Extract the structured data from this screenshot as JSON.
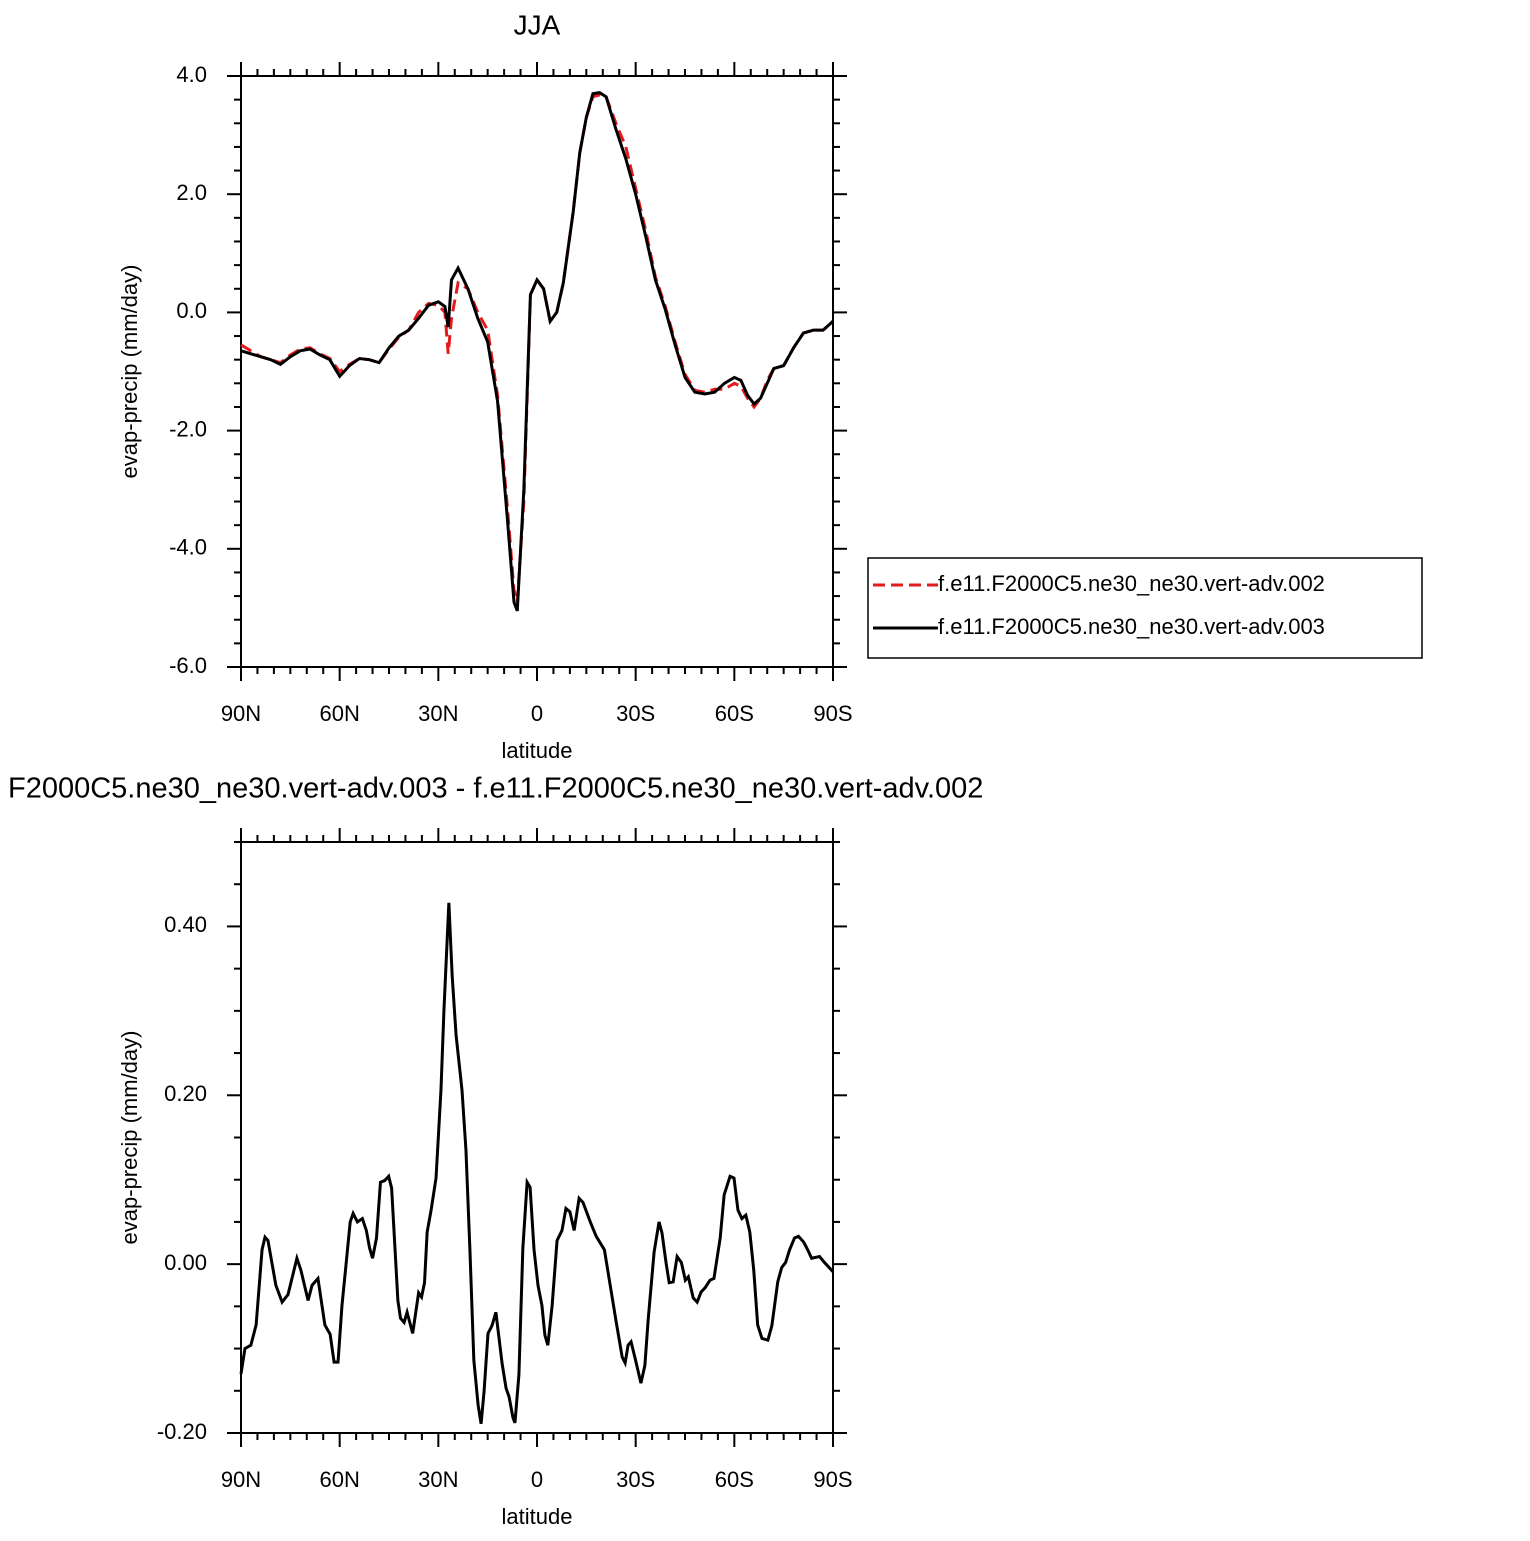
{
  "chart_data": [
    {
      "type": "line",
      "title": "JJA",
      "xlabel": "latitude",
      "ylabel": "evap-precip (mm/day)",
      "xlim": [
        90,
        -90
      ],
      "xticks": [
        {
          "value": 90,
          "label": "90N"
        },
        {
          "value": 60,
          "label": "60N"
        },
        {
          "value": 30,
          "label": "30N"
        },
        0,
        {
          "value": -30,
          "label": "30S"
        },
        {
          "value": -60,
          "label": "60S"
        },
        {
          "value": -90,
          "label": "90S"
        }
      ],
      "ylim": [
        -6,
        4
      ],
      "yticks": [
        {
          "value": -6,
          "label": "-6.0"
        },
        {
          "value": -4,
          "label": "-4.0"
        },
        {
          "value": -2,
          "label": "-2.0"
        },
        {
          "value": 0,
          "label": "0.0"
        },
        {
          "value": 2,
          "label": "2.0"
        },
        {
          "value": 4,
          "label": "4.0"
        }
      ],
      "legend": "right",
      "x": [
        90,
        87,
        84,
        81,
        78,
        75,
        72,
        69,
        66,
        63,
        60,
        57,
        54,
        51,
        48,
        45,
        42,
        39,
        36,
        33,
        30,
        28,
        27,
        26,
        24,
        21,
        18,
        15,
        12,
        9,
        7,
        6,
        4,
        2,
        0,
        -2,
        -4,
        -6,
        -8,
        -11,
        -13,
        -15,
        -17,
        -19,
        -21,
        -24,
        -27,
        -30,
        -33,
        -36,
        -39,
        -42,
        -45,
        -48,
        -51,
        -54,
        -57,
        -60,
        -62,
        -64,
        -66,
        -68,
        -70,
        -72,
        -75,
        -78,
        -81,
        -84,
        -87,
        -90
      ],
      "series": [
        {
          "name": "f.e11.F2000C5.ne30_ne30.vert-adv.002",
          "color": "#e41a1c",
          "linestyle": "dashed",
          "values": [
            -0.55,
            -0.65,
            -0.75,
            -0.8,
            -0.85,
            -0.72,
            -0.62,
            -0.6,
            -0.7,
            -0.78,
            -1.0,
            -0.88,
            -0.78,
            -0.8,
            -0.85,
            -0.62,
            -0.42,
            -0.3,
            0.0,
            0.15,
            0.12,
            0.0,
            -0.7,
            -0.1,
            0.5,
            0.4,
            0.0,
            -0.3,
            -1.4,
            -3.3,
            -4.7,
            -4.9,
            -3.2,
            0.3,
            0.55,
            0.4,
            -0.15,
            0.0,
            0.5,
            1.7,
            2.7,
            3.3,
            3.65,
            3.68,
            3.65,
            3.2,
            2.8,
            2.1,
            1.4,
            0.6,
            0.1,
            -0.5,
            -1.05,
            -1.32,
            -1.35,
            -1.3,
            -1.3,
            -1.2,
            -1.25,
            -1.45,
            -1.6,
            -1.45,
            -1.15,
            -0.95,
            -0.9,
            -0.6,
            -0.35,
            -0.3,
            -0.3,
            -0.15
          ]
        },
        {
          "name": "f.e11.F2000C5.ne30_ne30.vert-adv.003",
          "color": "#000000",
          "linestyle": "solid",
          "values": [
            -0.65,
            -0.7,
            -0.75,
            -0.8,
            -0.88,
            -0.75,
            -0.65,
            -0.62,
            -0.72,
            -0.8,
            -1.08,
            -0.9,
            -0.78,
            -0.8,
            -0.85,
            -0.6,
            -0.4,
            -0.3,
            -0.1,
            0.12,
            0.18,
            0.1,
            -0.25,
            0.55,
            0.75,
            0.4,
            -0.1,
            -0.5,
            -1.5,
            -3.5,
            -4.9,
            -5.05,
            -3.0,
            0.3,
            0.55,
            0.4,
            -0.15,
            0.0,
            0.5,
            1.7,
            2.7,
            3.3,
            3.7,
            3.72,
            3.65,
            3.1,
            2.6,
            2.0,
            1.3,
            0.55,
            0.05,
            -0.55,
            -1.1,
            -1.35,
            -1.38,
            -1.35,
            -1.2,
            -1.1,
            -1.15,
            -1.4,
            -1.55,
            -1.45,
            -1.2,
            -0.95,
            -0.9,
            -0.6,
            -0.35,
            -0.3,
            -0.3,
            -0.15
          ]
        }
      ]
    },
    {
      "type": "line",
      "title": "F2000C5.ne30_ne30.vert-adv.003 - f.e11.F2000C5.ne30_ne30.vert-adv.002",
      "xlabel": "latitude",
      "ylabel": "evap-precip (mm/day)",
      "xlim": [
        90,
        -90
      ],
      "xticks": [
        {
          "value": 90,
          "label": "90N"
        },
        {
          "value": 60,
          "label": "60N"
        },
        {
          "value": 30,
          "label": "30N"
        },
        0,
        {
          "value": -30,
          "label": "30S"
        },
        {
          "value": -60,
          "label": "60S"
        },
        {
          "value": -90,
          "label": "90S"
        }
      ],
      "ylim": [
        -0.2,
        0.5
      ],
      "yticks": [
        {
          "value": -0.2,
          "label": "-0.20"
        },
        {
          "value": 0,
          "label": "0.00"
        },
        {
          "value": 0.2,
          "label": "0.20"
        },
        {
          "value": 0.4,
          "label": "0.40"
        }
      ],
      "x": [
        90,
        88.8,
        87,
        85.4,
        83.6,
        82.7,
        81.8,
        79.4,
        77.5,
        75.7,
        73,
        71.8,
        69.6,
        68.4,
        66.6,
        64.5,
        62.9,
        61.7,
        60.5,
        59.3,
        58,
        56.8,
        55.9,
        54.6,
        53.1,
        51.9,
        50.9,
        50,
        48.8,
        47.6,
        46.3,
        45.1,
        44.2,
        42.3,
        41.5,
        40.4,
        39.5,
        37.8,
        36,
        35.1,
        34.2,
        33.4,
        32.2,
        30.7,
        29.2,
        28.3,
        26.8,
        25.8,
        24.6,
        22.8,
        21.6,
        20.4,
        19.2,
        17.9,
        17,
        16.1,
        14.9,
        13.7,
        12.5,
        10.6,
        9.4,
        8.5,
        7.3,
        6.7,
        5.5,
        4.3,
        3,
        2.1,
        0.9,
        -0.3,
        -1.5,
        -2.4,
        -3.3,
        -4.6,
        -6.1,
        -7.6,
        -8.8,
        -10,
        -11.3,
        -12.8,
        -14,
        -16.2,
        -18,
        -20.5,
        -22,
        -24.1,
        -25.9,
        -26.8,
        -27.7,
        -28.6,
        -29.8,
        -31.6,
        -32.8,
        -33.8,
        -35.6,
        -37.1,
        -38,
        -39.3,
        -40.2,
        -41.4,
        -42.6,
        -43.9,
        -45.1,
        -46,
        -47.5,
        -48.7,
        -49.9,
        -51.1,
        -52.6,
        -53.8,
        -55.7,
        -56.9,
        -58.7,
        -59.9,
        -61.1,
        -62.3,
        -63.5,
        -64.7,
        -65.9,
        -67.1,
        -68.4,
        -70.2,
        -71.4,
        -73.2,
        -74.4,
        -75.6,
        -76.8,
        -78.3,
        -79.5,
        -81.1,
        -82.3,
        -83.5,
        -85.9,
        -87.4,
        -90
      ],
      "series": [
        {
          "name": null,
          "color": "#000000",
          "linestyle": "solid",
          "values": [
            -0.13,
            -0.1,
            -0.096,
            -0.072,
            0.017,
            0.032,
            0.028,
            -0.025,
            -0.045,
            -0.036,
            0.007,
            -0.007,
            -0.043,
            -0.025,
            -0.017,
            -0.072,
            -0.083,
            -0.116,
            -0.116,
            -0.049,
            0.002,
            0.05,
            0.06,
            0.05,
            0.054,
            0.04,
            0.019,
            0.007,
            0.031,
            0.097,
            0.099,
            0.104,
            0.09,
            -0.043,
            -0.064,
            -0.069,
            -0.057,
            -0.082,
            -0.034,
            -0.039,
            -0.022,
            0.038,
            0.064,
            0.102,
            0.206,
            0.3,
            0.428,
            0.342,
            0.271,
            0.206,
            0.135,
            0.017,
            -0.114,
            -0.167,
            -0.189,
            -0.151,
            -0.082,
            -0.073,
            -0.057,
            -0.118,
            -0.147,
            -0.157,
            -0.182,
            -0.188,
            -0.131,
            0.019,
            0.097,
            0.091,
            0.017,
            -0.025,
            -0.049,
            -0.084,
            -0.096,
            -0.049,
            0.028,
            0.04,
            0.066,
            0.062,
            0.04,
            0.078,
            0.073,
            0.05,
            0.033,
            0.017,
            -0.019,
            -0.069,
            -0.11,
            -0.117,
            -0.096,
            -0.092,
            -0.111,
            -0.141,
            -0.12,
            -0.066,
            0.014,
            0.05,
            0.037,
            0,
            -0.022,
            -0.021,
            0.009,
            0.002,
            -0.019,
            -0.015,
            -0.04,
            -0.045,
            -0.033,
            -0.028,
            -0.019,
            -0.017,
            0.031,
            0.082,
            0.104,
            0.102,
            0.064,
            0.054,
            0.058,
            0.038,
            -0.007,
            -0.072,
            -0.088,
            -0.09,
            -0.073,
            -0.021,
            -0.004,
            0.002,
            0.017,
            0.031,
            0.033,
            0.026,
            0.017,
            0.007,
            0.009,
            0.002,
            -0.009
          ]
        }
      ]
    }
  ]
}
